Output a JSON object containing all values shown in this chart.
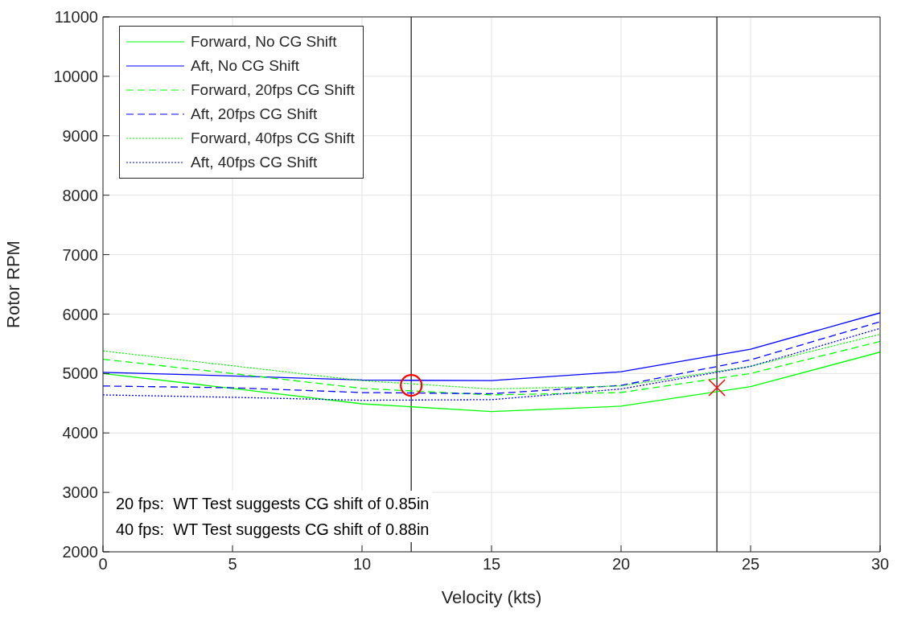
{
  "chart_data": {
    "type": "line",
    "xlabel": "Velocity (kts)",
    "ylabel": "Rotor RPM",
    "x": [
      0,
      5,
      10,
      15,
      20,
      25,
      30
    ],
    "xlim": [
      0,
      30
    ],
    "xticks": [
      0,
      5,
      10,
      15,
      20,
      25,
      30
    ],
    "ylim": [
      2000,
      11000
    ],
    "yticks": [
      2000,
      3000,
      4000,
      5000,
      6000,
      7000,
      8000,
      9000,
      10000,
      11000
    ],
    "grid": true,
    "legend": "top left",
    "marker": "none",
    "series": [
      {
        "name": "Forward, No CG Shift",
        "color": "#00ff00",
        "line_style": "solid",
        "values": [
          5000,
          4750,
          4490,
          4360,
          4450,
          4780,
          5360
        ]
      },
      {
        "name": "Aft, No CG Shift",
        "color": "#0000ff",
        "line_style": "solid",
        "values": [
          5020,
          4960,
          4890,
          4880,
          5030,
          5410,
          6020
        ]
      },
      {
        "name": "Forward, 20fps CG Shift",
        "color": "#00ff00",
        "line_style": "dashed",
        "values": [
          5240,
          5000,
          4750,
          4640,
          4680,
          5000,
          5540
        ]
      },
      {
        "name": "Aft, 20fps CG Shift",
        "color": "#0000ff",
        "line_style": "dashed",
        "values": [
          4790,
          4760,
          4680,
          4660,
          4800,
          5230,
          5870
        ]
      },
      {
        "name": "Forward, 40fps CG Shift",
        "color": "#00ff00",
        "line_style": "dotted",
        "values": [
          5380,
          5130,
          4880,
          4740,
          4790,
          5120,
          5660
        ]
      },
      {
        "name": "Aft, 40fps CG Shift",
        "color": "#0000ff",
        "line_style": "dotted",
        "values": [
          4640,
          4600,
          4550,
          4560,
          4740,
          5120,
          5760
        ]
      },
      {
        "type": "scatter",
        "x": [
          11.9
        ],
        "values": [
          4800
        ],
        "color": "#ff0000",
        "marker": "circle"
      },
      {
        "type": "scatter",
        "x": [
          23.7
        ],
        "values": [
          4760
        ],
        "color": "#ff0000",
        "marker": "cross"
      }
    ],
    "ref_lines": [
      {
        "axis": "x",
        "value": 11.9,
        "color": "#404040"
      },
      {
        "axis": "x",
        "value": 23.7,
        "color": "#404040"
      }
    ],
    "annotations": [
      "20 fps:  WT Test suggests CG shift of 0.85in",
      "40 fps:  WT Test suggests CG shift of 0.88in"
    ]
  }
}
